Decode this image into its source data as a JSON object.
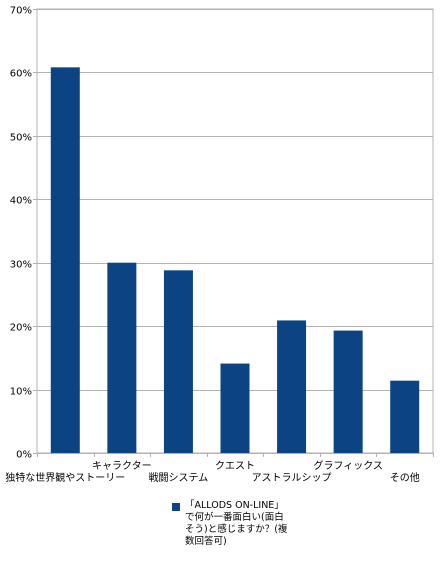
{
  "chart_data": {
    "type": "bar",
    "categories": [
      "独特な世界観やストーリー",
      "キャラクター",
      "戦闘システム",
      "クエスト",
      "アストラルシップ",
      "グラフィックス",
      "その他"
    ],
    "series": [
      {
        "name": "「ALLODS ON-LINE」で何が一番面白い(面白そう)と感じますか？(複数回答可)",
        "values": [
          60.8,
          30.0,
          28.8,
          14.1,
          20.9,
          19.3,
          11.4
        ],
        "color": "#0b4383"
      }
    ],
    "y_tick_labels": [
      "0%",
      "10%",
      "20%",
      "30%",
      "40%",
      "50%",
      "60%",
      "70%"
    ],
    "ylim": [
      0,
      70
    ],
    "grid": true,
    "legend_position": "bottom"
  }
}
